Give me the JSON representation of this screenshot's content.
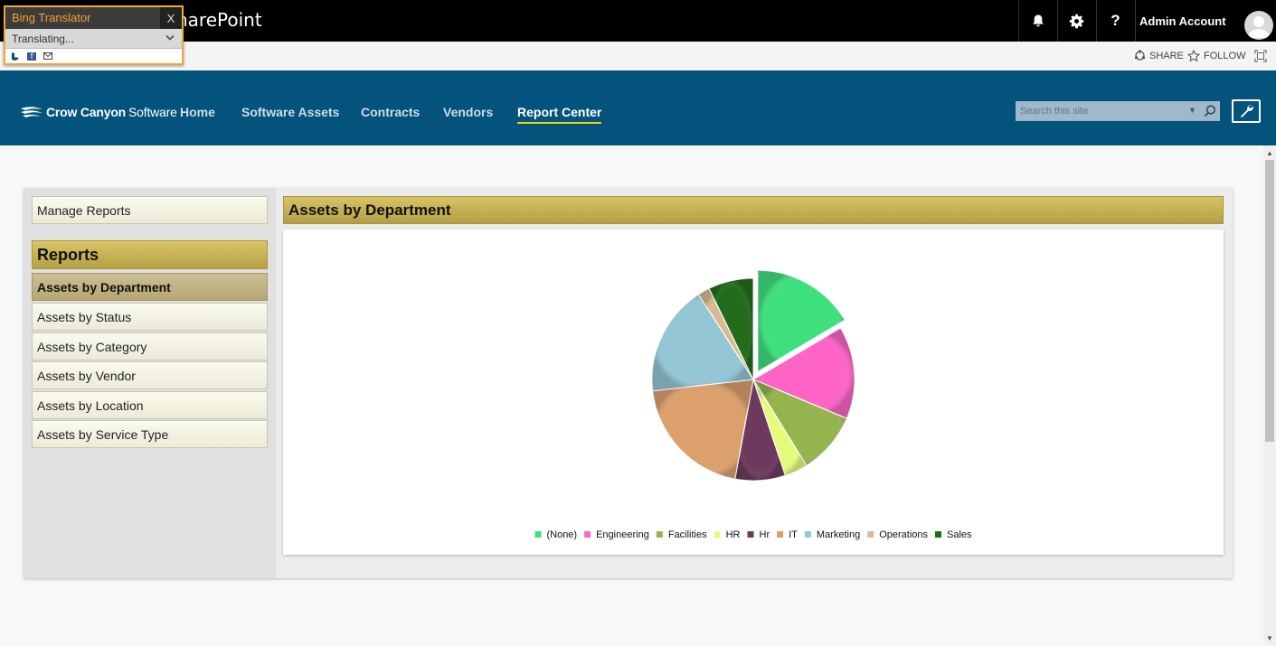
{
  "suite": {
    "app_title": "harePoint",
    "account": "Admin Account"
  },
  "bing": {
    "title": "Bing Translator",
    "close": "X",
    "status": "Translating...",
    "chevron": "⌄"
  },
  "ribbon": {
    "share": "SHARE",
    "follow": "FOLLOW"
  },
  "nav": {
    "logo_main": "Crow Canyon",
    "logo_sub": "Software",
    "links": [
      "Home",
      "Software Assets",
      "Contracts",
      "Vendors",
      "Report Center"
    ],
    "search_placeholder": "Search this site"
  },
  "sidebar": {
    "manage": "Manage Reports",
    "reports_heading": "Reports",
    "items": [
      "Assets by Department",
      "Assets by Status",
      "Assets by Category",
      "Assets by Vendor",
      "Assets by Location",
      "Assets by Service Type"
    ]
  },
  "chart_title": "Assets by Department",
  "chart_data": {
    "type": "pie",
    "categories": [
      "(None)",
      "Engineering",
      "Facilities",
      "HR",
      "Hr",
      "IT",
      "Marketing",
      "Operations",
      "Sales"
    ],
    "values": [
      16.5,
      14.8,
      9.9,
      3.7,
      8.0,
      20.3,
      17.7,
      1.9,
      7.2
    ],
    "exploded": "(None)",
    "colors": [
      "#3de07d",
      "#fd64c6",
      "#94b44e",
      "#e4fc7c",
      "#6d3a5e",
      "#dba06c",
      "#94c6d5",
      "#d8bb94",
      "#236c1c"
    ],
    "legend_position": "bottom"
  },
  "icons": [
    "bell-icon",
    "gear-icon",
    "help-icon",
    "user-avatar-icon",
    "share-icon",
    "star-icon",
    "focus-icon",
    "search-icon",
    "wrench-icon",
    "bing-icon",
    "facebook-icon",
    "mail-icon"
  ]
}
